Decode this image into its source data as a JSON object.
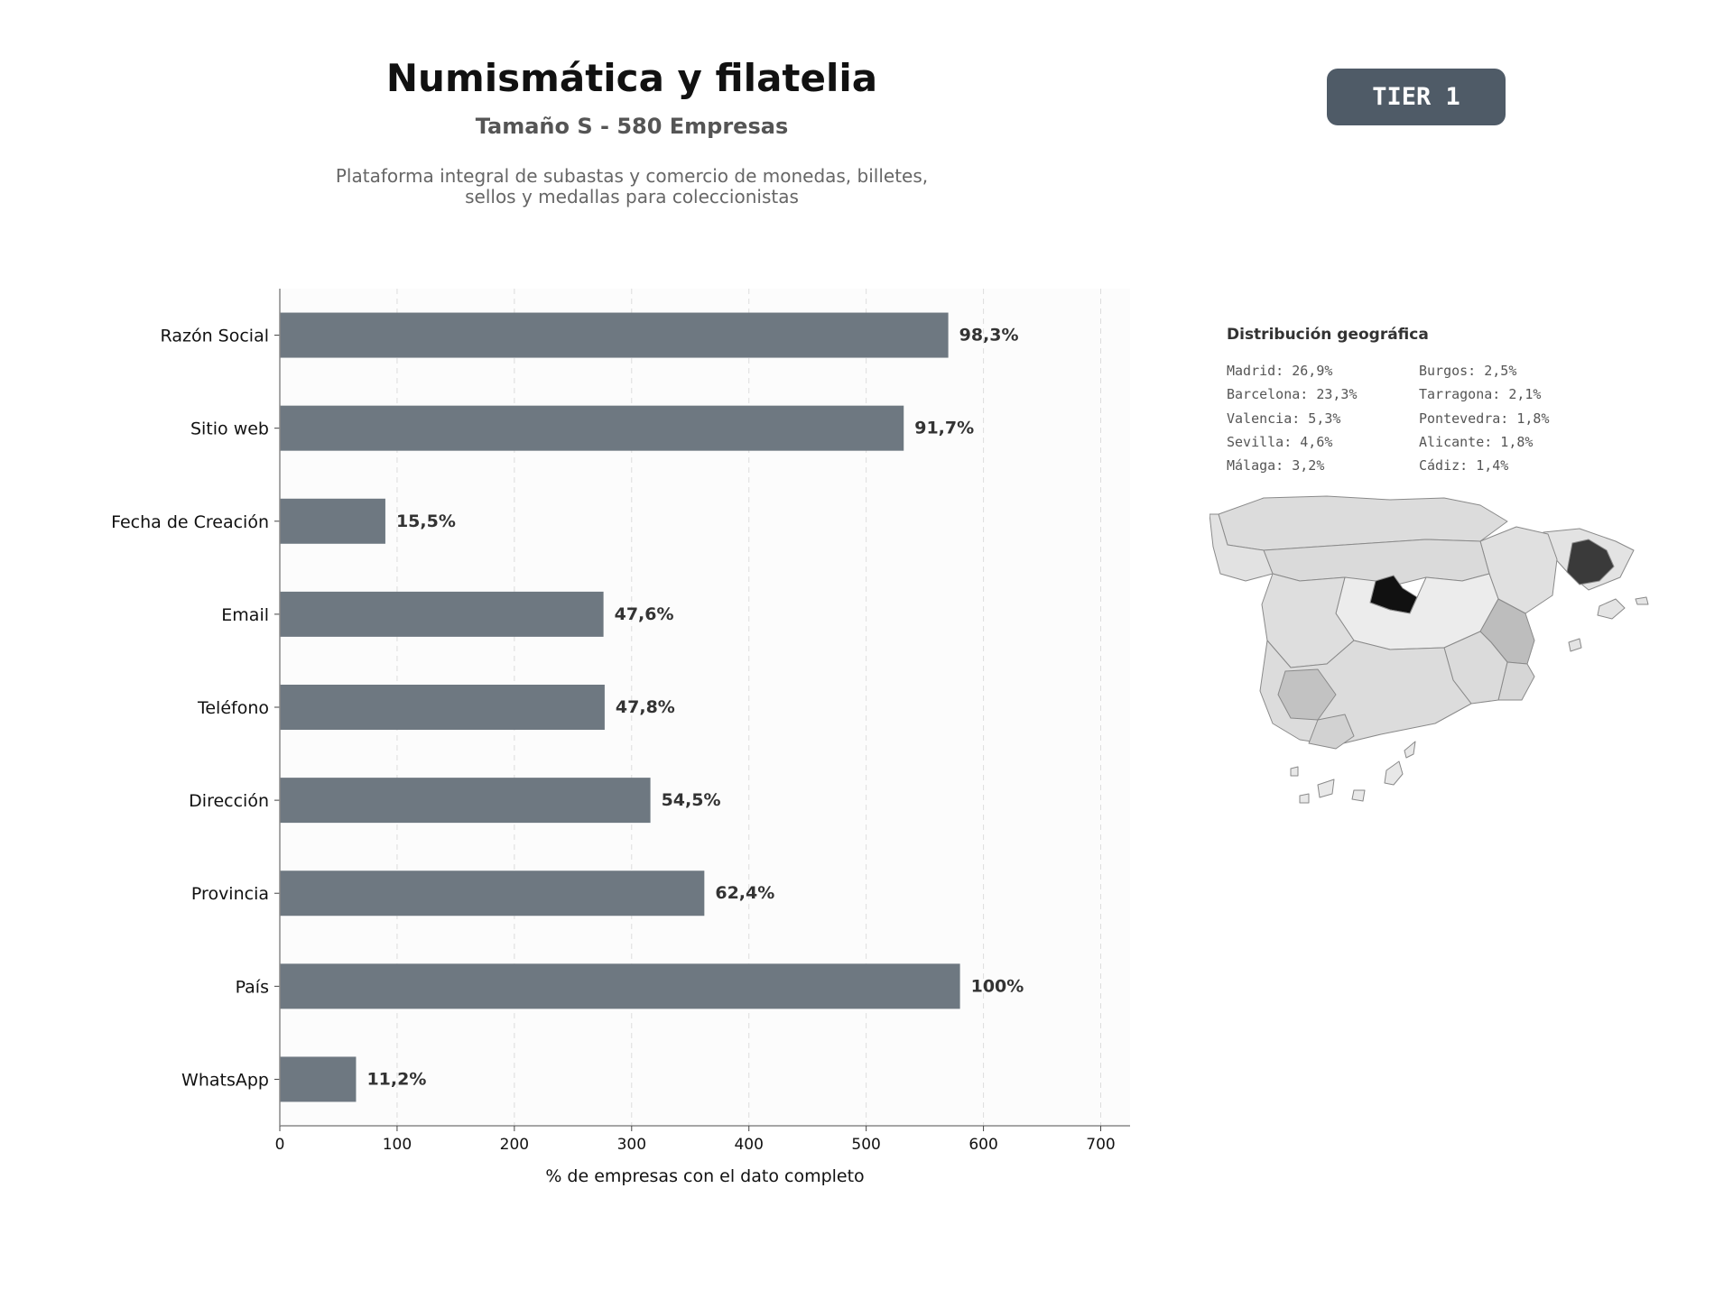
{
  "header": {
    "title": "Numismática y filatelia",
    "subtitle": "Tamaño S - 580 Empresas",
    "description_line1": "Plataforma integral de subastas y comercio de monedas, billetes,",
    "description_line2": "sellos y medallas para coleccionistas",
    "tier": "TIER 1"
  },
  "chart_data": {
    "type": "bar",
    "orientation": "horizontal",
    "categories": [
      "Razón Social",
      "Sitio web",
      "Fecha de Creación",
      "Email",
      "Teléfono",
      "Dirección",
      "Provincia",
      "País",
      "WhatsApp"
    ],
    "values": [
      570,
      532,
      90,
      276,
      277,
      316,
      362,
      580,
      65
    ],
    "data_labels": [
      "98,3%",
      "91,7%",
      "15,5%",
      "47,6%",
      "47,8%",
      "54,5%",
      "62,4%",
      "100%",
      "11,2%"
    ],
    "xlabel": "% de empresas con el dato completo",
    "xlim": [
      0,
      725
    ],
    "xticks": [
      0,
      100,
      200,
      300,
      400,
      500,
      600,
      700
    ],
    "grid": "vertical-dashed",
    "bar_color": "#6e7881"
  },
  "geo": {
    "title": "Distribución geográfica",
    "col1": [
      "Madrid: 26,9%",
      "Barcelona: 23,3%",
      "Valencia: 5,3%",
      "Sevilla: 4,6%",
      "Málaga: 3,2%"
    ],
    "col2": [
      "Burgos: 2,5%",
      "Tarragona: 2,1%",
      "Pontevedra: 1,8%",
      "Alicante: 1,8%",
      "Cádiz: 1,4%"
    ]
  }
}
